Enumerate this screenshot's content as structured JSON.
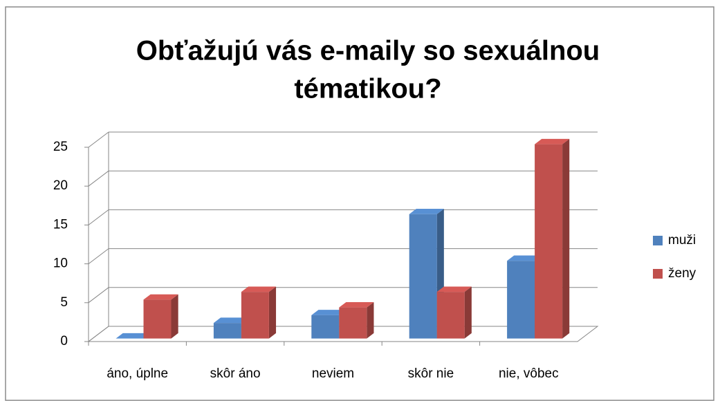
{
  "chart_data": {
    "type": "bar3d",
    "title": [
      "Obťažujú vás e-maily so sexuálnou",
      "tématikou?"
    ],
    "categories": [
      "áno, úplne",
      "skôr áno",
      "neviem",
      "skôr nie",
      "nie, vôbec"
    ],
    "series": [
      {
        "name": "muži",
        "color": "#4f81bd",
        "values": [
          0,
          2,
          3,
          16,
          10
        ]
      },
      {
        "name": "ženy",
        "color": "#c0504d",
        "values": [
          5,
          6,
          4,
          6,
          25
        ]
      }
    ],
    "ylim": [
      0,
      25
    ],
    "yticks": [
      0,
      5,
      10,
      15,
      20,
      25
    ],
    "grid": true,
    "legend": "right"
  }
}
